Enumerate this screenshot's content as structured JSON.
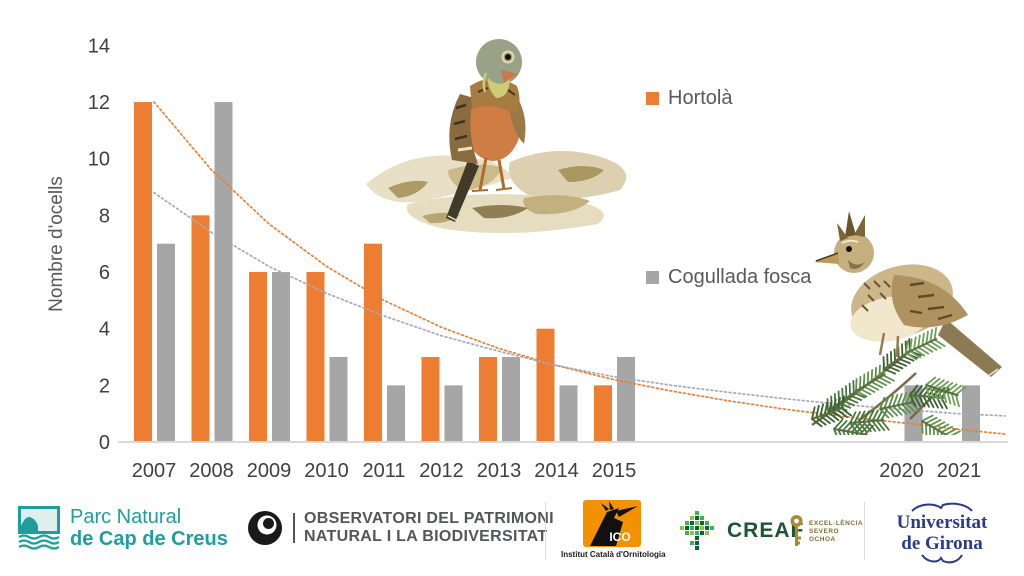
{
  "page": {
    "background": "#FFFFFF"
  },
  "chart_data": {
    "type": "bar",
    "title": "",
    "xlabel": "",
    "ylabel": "Nombre d'ocells",
    "ylim": [
      0,
      14
    ],
    "yticks": [
      0,
      2,
      4,
      6,
      8,
      10,
      12,
      14
    ],
    "categories": [
      2007,
      2008,
      2009,
      2010,
      2011,
      2012,
      2013,
      2014,
      2015,
      2020,
      2021
    ],
    "series": [
      {
        "name": "Hortolà",
        "color": "#ED7D31",
        "values": [
          12,
          8,
          6,
          6,
          7,
          3,
          3,
          4,
          2,
          null,
          null
        ]
      },
      {
        "name": "Cogullada fosca",
        "color": "#A6A6A6",
        "values": [
          7,
          12,
          6,
          3,
          2,
          2,
          3,
          2,
          3,
          2,
          2
        ]
      }
    ],
    "trendlines": [
      {
        "series": "Hortolà",
        "style": "dotted",
        "color": "#ED7D31",
        "points": [
          [
            2007,
            12
          ],
          [
            2008,
            9.6
          ],
          [
            2009,
            7.7
          ],
          [
            2010,
            6.2
          ],
          [
            2011,
            5.0
          ],
          [
            2012,
            4.05
          ],
          [
            2013,
            3.3
          ],
          [
            2014,
            2.7
          ],
          [
            2015,
            2.2
          ],
          [
            2016,
            1.8
          ],
          [
            2017,
            1.45
          ],
          [
            2018,
            1.15
          ],
          [
            2019,
            0.9
          ],
          [
            2020,
            0.68
          ],
          [
            2021,
            0.45
          ],
          [
            2021.8,
            0.28
          ]
        ]
      },
      {
        "series": "Cogullada fosca",
        "style": "dotted",
        "color": "#A6A9B8",
        "points": [
          [
            2007,
            8.8
          ],
          [
            2008,
            7.4
          ],
          [
            2009,
            6.2
          ],
          [
            2010,
            5.25
          ],
          [
            2011,
            4.45
          ],
          [
            2012,
            3.75
          ],
          [
            2013,
            3.2
          ],
          [
            2014,
            2.7
          ],
          [
            2015,
            2.3
          ],
          [
            2016,
            2.0
          ],
          [
            2017,
            1.75
          ],
          [
            2018,
            1.52
          ],
          [
            2019,
            1.32
          ],
          [
            2020,
            1.15
          ],
          [
            2021,
            1.0
          ],
          [
            2021.8,
            0.92
          ]
        ]
      }
    ],
    "legend": {
      "position": "right-inside",
      "entries": [
        "Hortolà",
        "Cogullada fosca"
      ]
    },
    "gridlines": false,
    "axis_color": "#D9D9D9",
    "tick_label_color": "#404040"
  },
  "footer": {
    "parc_natural": {
      "line1": "Parc Natural",
      "line2": "de Cap de Creus",
      "color": "#1F9E9E"
    },
    "observatori": {
      "line1": "OBSERVATORI DEL PATRIMONI",
      "line2": "NATURAL I LA BIODIVERSITAT",
      "color": "#55565A"
    },
    "ico": {
      "acronym": "ICO",
      "caption": "Institut Català d'Ornitologia",
      "square_color": "#F39200"
    },
    "creaf": {
      "name": "CREAF",
      "color": "#1A5632"
    },
    "severo_ochoa": {
      "line1": "EXCEL·LÈNCIA",
      "line2": "SEVERO",
      "line3": "OCHOA",
      "color": "#7D6D30"
    },
    "udg": {
      "line1": "Universitat",
      "line2": "de Girona",
      "color": "#2B3A8C"
    }
  }
}
